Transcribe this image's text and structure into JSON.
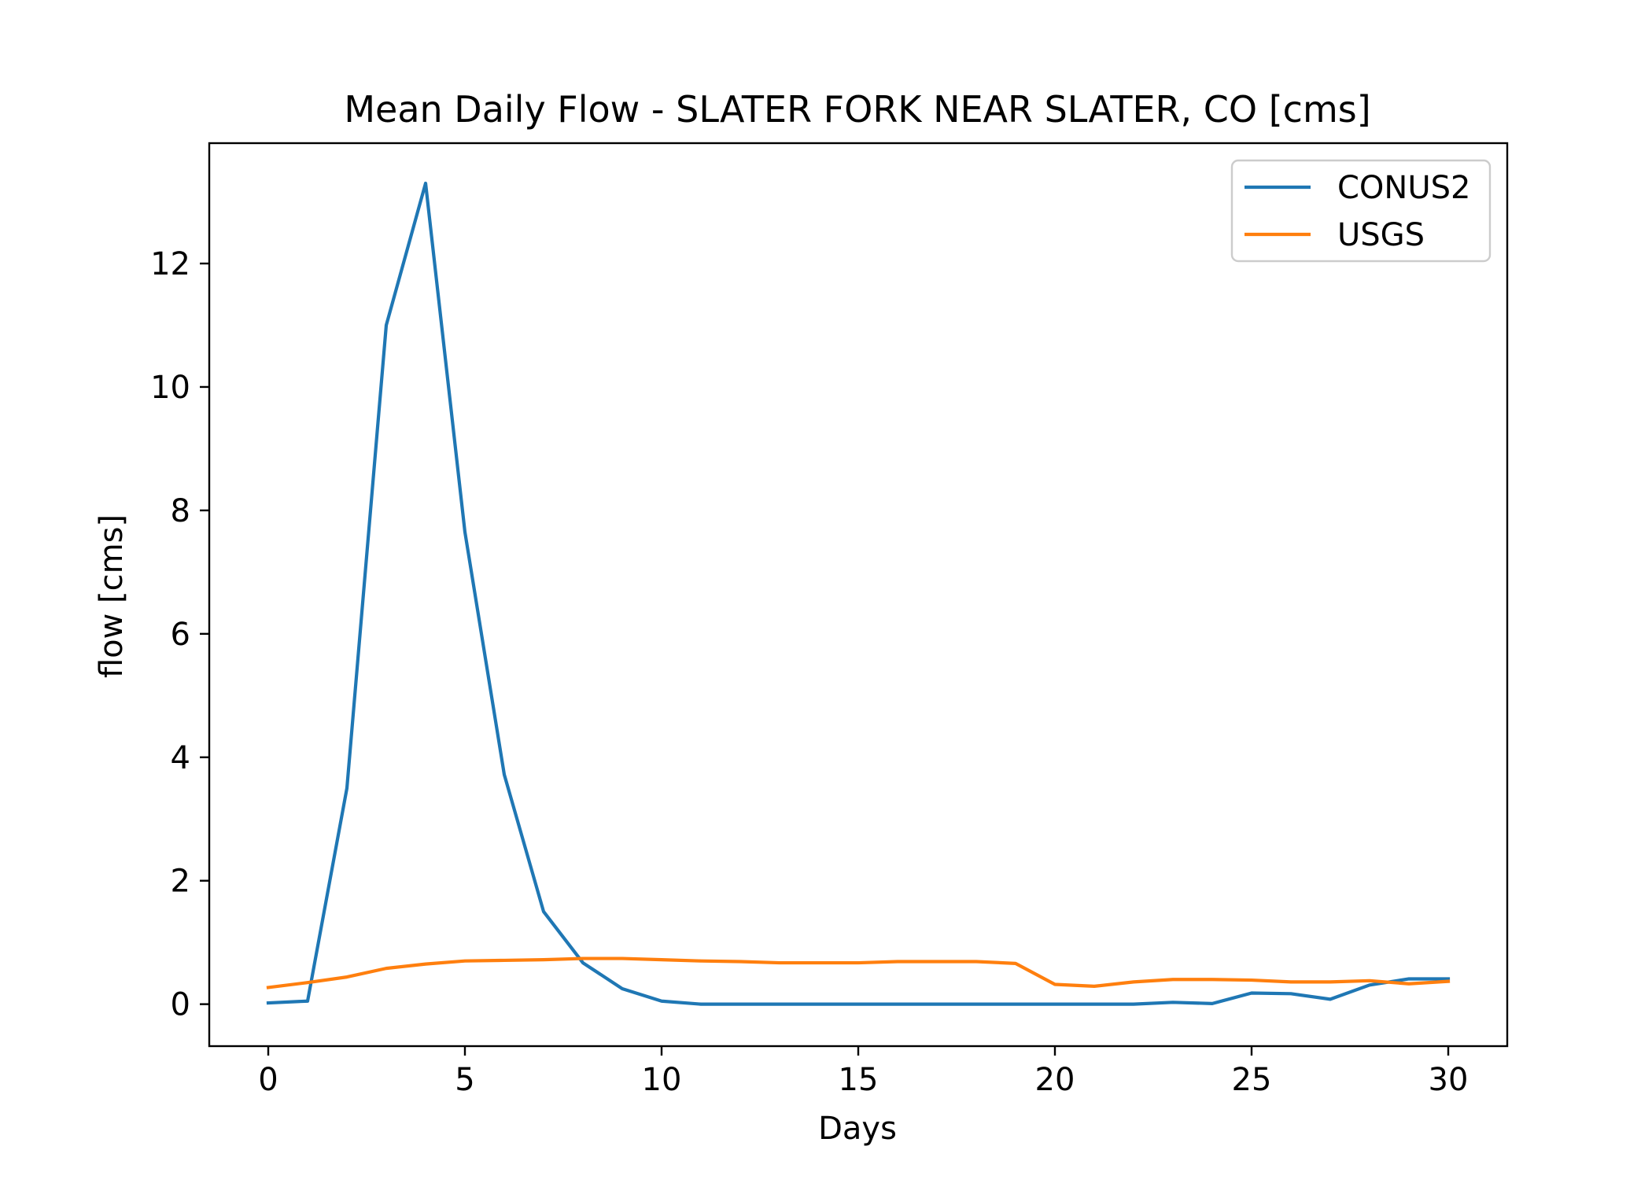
{
  "chart_data": {
    "type": "line",
    "title": "Mean Daily Flow - SLATER FORK NEAR SLATER, CO [cms]",
    "xlabel": "Days",
    "ylabel": "flow [cms]",
    "xlim": [
      -1.5,
      31.5
    ],
    "ylim": [
      -0.68,
      13.95
    ],
    "xticks": [
      0,
      5,
      10,
      15,
      20,
      25,
      30
    ],
    "yticks": [
      0,
      2,
      4,
      6,
      8,
      10,
      12
    ],
    "grid": false,
    "legend_position": "upper right",
    "x": [
      0,
      1,
      2,
      3,
      4,
      5,
      6,
      7,
      8,
      9,
      10,
      11,
      12,
      13,
      14,
      15,
      16,
      17,
      18,
      19,
      20,
      21,
      22,
      23,
      24,
      25,
      26,
      27,
      28,
      29,
      30
    ],
    "series": [
      {
        "name": "CONUS2",
        "color": "#1f77b4",
        "values": [
          0.02,
          0.05,
          3.5,
          11.0,
          13.3,
          7.65,
          3.72,
          1.5,
          0.67,
          0.25,
          0.05,
          0.0,
          0.0,
          0.0,
          0.0,
          0.0,
          0.0,
          0.0,
          0.0,
          0.0,
          0.0,
          0.0,
          0.0,
          0.03,
          0.01,
          0.18,
          0.17,
          0.08,
          0.31,
          0.41,
          0.41
        ]
      },
      {
        "name": "USGS",
        "color": "#ff7f0e",
        "values": [
          0.27,
          0.35,
          0.44,
          0.58,
          0.65,
          0.7,
          0.71,
          0.72,
          0.74,
          0.74,
          0.72,
          0.7,
          0.69,
          0.67,
          0.67,
          0.67,
          0.69,
          0.69,
          0.69,
          0.66,
          0.32,
          0.29,
          0.36,
          0.4,
          0.4,
          0.39,
          0.36,
          0.36,
          0.38,
          0.33,
          0.37
        ]
      }
    ]
  }
}
